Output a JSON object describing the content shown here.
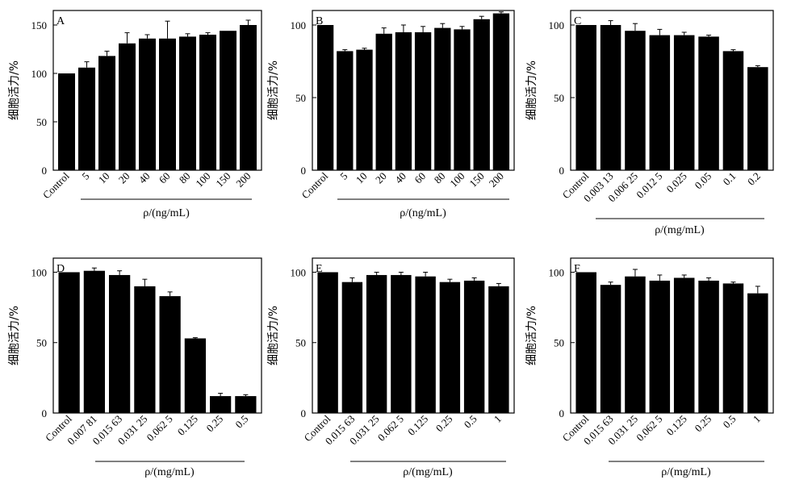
{
  "figure": {
    "style": {
      "bar_color": "#000000",
      "axis_color": "#000000",
      "background": "#ffffff"
    }
  },
  "chart_data": [
    {
      "panel": "A",
      "type": "bar",
      "ylabel": "细胞活力/%",
      "xlabel": "ρ/(ng/mL)",
      "categories": [
        "Control",
        "5",
        "10",
        "20",
        "40",
        "60",
        "80",
        "100",
        "150",
        "200"
      ],
      "values": [
        100,
        106,
        118,
        131,
        136,
        136,
        138,
        140,
        144,
        150
      ],
      "errors": [
        0,
        6,
        5,
        11,
        4,
        18,
        3,
        2,
        0,
        5
      ],
      "ylim": [
        0,
        165
      ],
      "yticks": [
        0,
        50,
        100,
        150
      ]
    },
    {
      "panel": "B",
      "type": "bar",
      "ylabel": "细胞活力/%",
      "xlabel": "ρ/(ng/mL)",
      "categories": [
        "Control",
        "5",
        "10",
        "20",
        "40",
        "60",
        "80",
        "100",
        "150",
        "200"
      ],
      "values": [
        100,
        82,
        83,
        94,
        95,
        95,
        98,
        97,
        104,
        108
      ],
      "errors": [
        0,
        1,
        1,
        4,
        5,
        4,
        3,
        2,
        2,
        1
      ],
      "ylim": [
        0,
        110
      ],
      "yticks": [
        0,
        50,
        100
      ]
    },
    {
      "panel": "C",
      "type": "bar",
      "ylabel": "细胞活力/%",
      "xlabel": "ρ/(mg/mL)",
      "categories": [
        "Control",
        "0.003 13",
        "0.006 25",
        "0.012 5",
        "0.025",
        "0.05",
        "0.1",
        "0.2"
      ],
      "values": [
        100,
        100,
        96,
        93,
        93,
        92,
        82,
        71
      ],
      "errors": [
        0,
        3,
        5,
        4,
        2,
        1,
        1,
        1
      ],
      "ylim": [
        0,
        110
      ],
      "yticks": [
        0,
        50,
        100
      ]
    },
    {
      "panel": "D",
      "type": "bar",
      "ylabel": "细胞活力/%",
      "xlabel": "ρ/(mg/mL)",
      "categories": [
        "Control",
        "0.007 81",
        "0.015 63",
        "0.031 25",
        "0.062 5",
        "0.125",
        "0.25",
        "0.5"
      ],
      "values": [
        100,
        101,
        98,
        90,
        83,
        53,
        12,
        12
      ],
      "errors": [
        0,
        2,
        3,
        5,
        3,
        0.5,
        2,
        1
      ],
      "ylim": [
        0,
        110
      ],
      "yticks": [
        0,
        50,
        100
      ]
    },
    {
      "panel": "E",
      "type": "bar",
      "ylabel": "细胞活力/%",
      "xlabel": "ρ/(mg/mL)",
      "categories": [
        "Control",
        "0.015 63",
        "0.031 25",
        "0.062 5",
        "0.125",
        "0.25",
        "0.5",
        "1"
      ],
      "values": [
        100,
        93,
        98,
        98,
        97,
        93,
        94,
        90
      ],
      "errors": [
        0,
        3,
        2,
        2,
        3,
        2,
        2,
        2
      ],
      "ylim": [
        0,
        110
      ],
      "yticks": [
        0,
        50,
        100
      ]
    },
    {
      "panel": "F",
      "type": "bar",
      "ylabel": "细胞活力/%",
      "xlabel": "ρ/(mg/mL)",
      "categories": [
        "Control",
        "0.015 63",
        "0.031 25",
        "0.062 5",
        "0.125",
        "0.25",
        "0.5",
        "1"
      ],
      "values": [
        100,
        91,
        97,
        94,
        96,
        94,
        92,
        85
      ],
      "errors": [
        0,
        2,
        5,
        4,
        2,
        2,
        1,
        5
      ],
      "ylim": [
        0,
        110
      ],
      "yticks": [
        0,
        50,
        100
      ]
    }
  ]
}
